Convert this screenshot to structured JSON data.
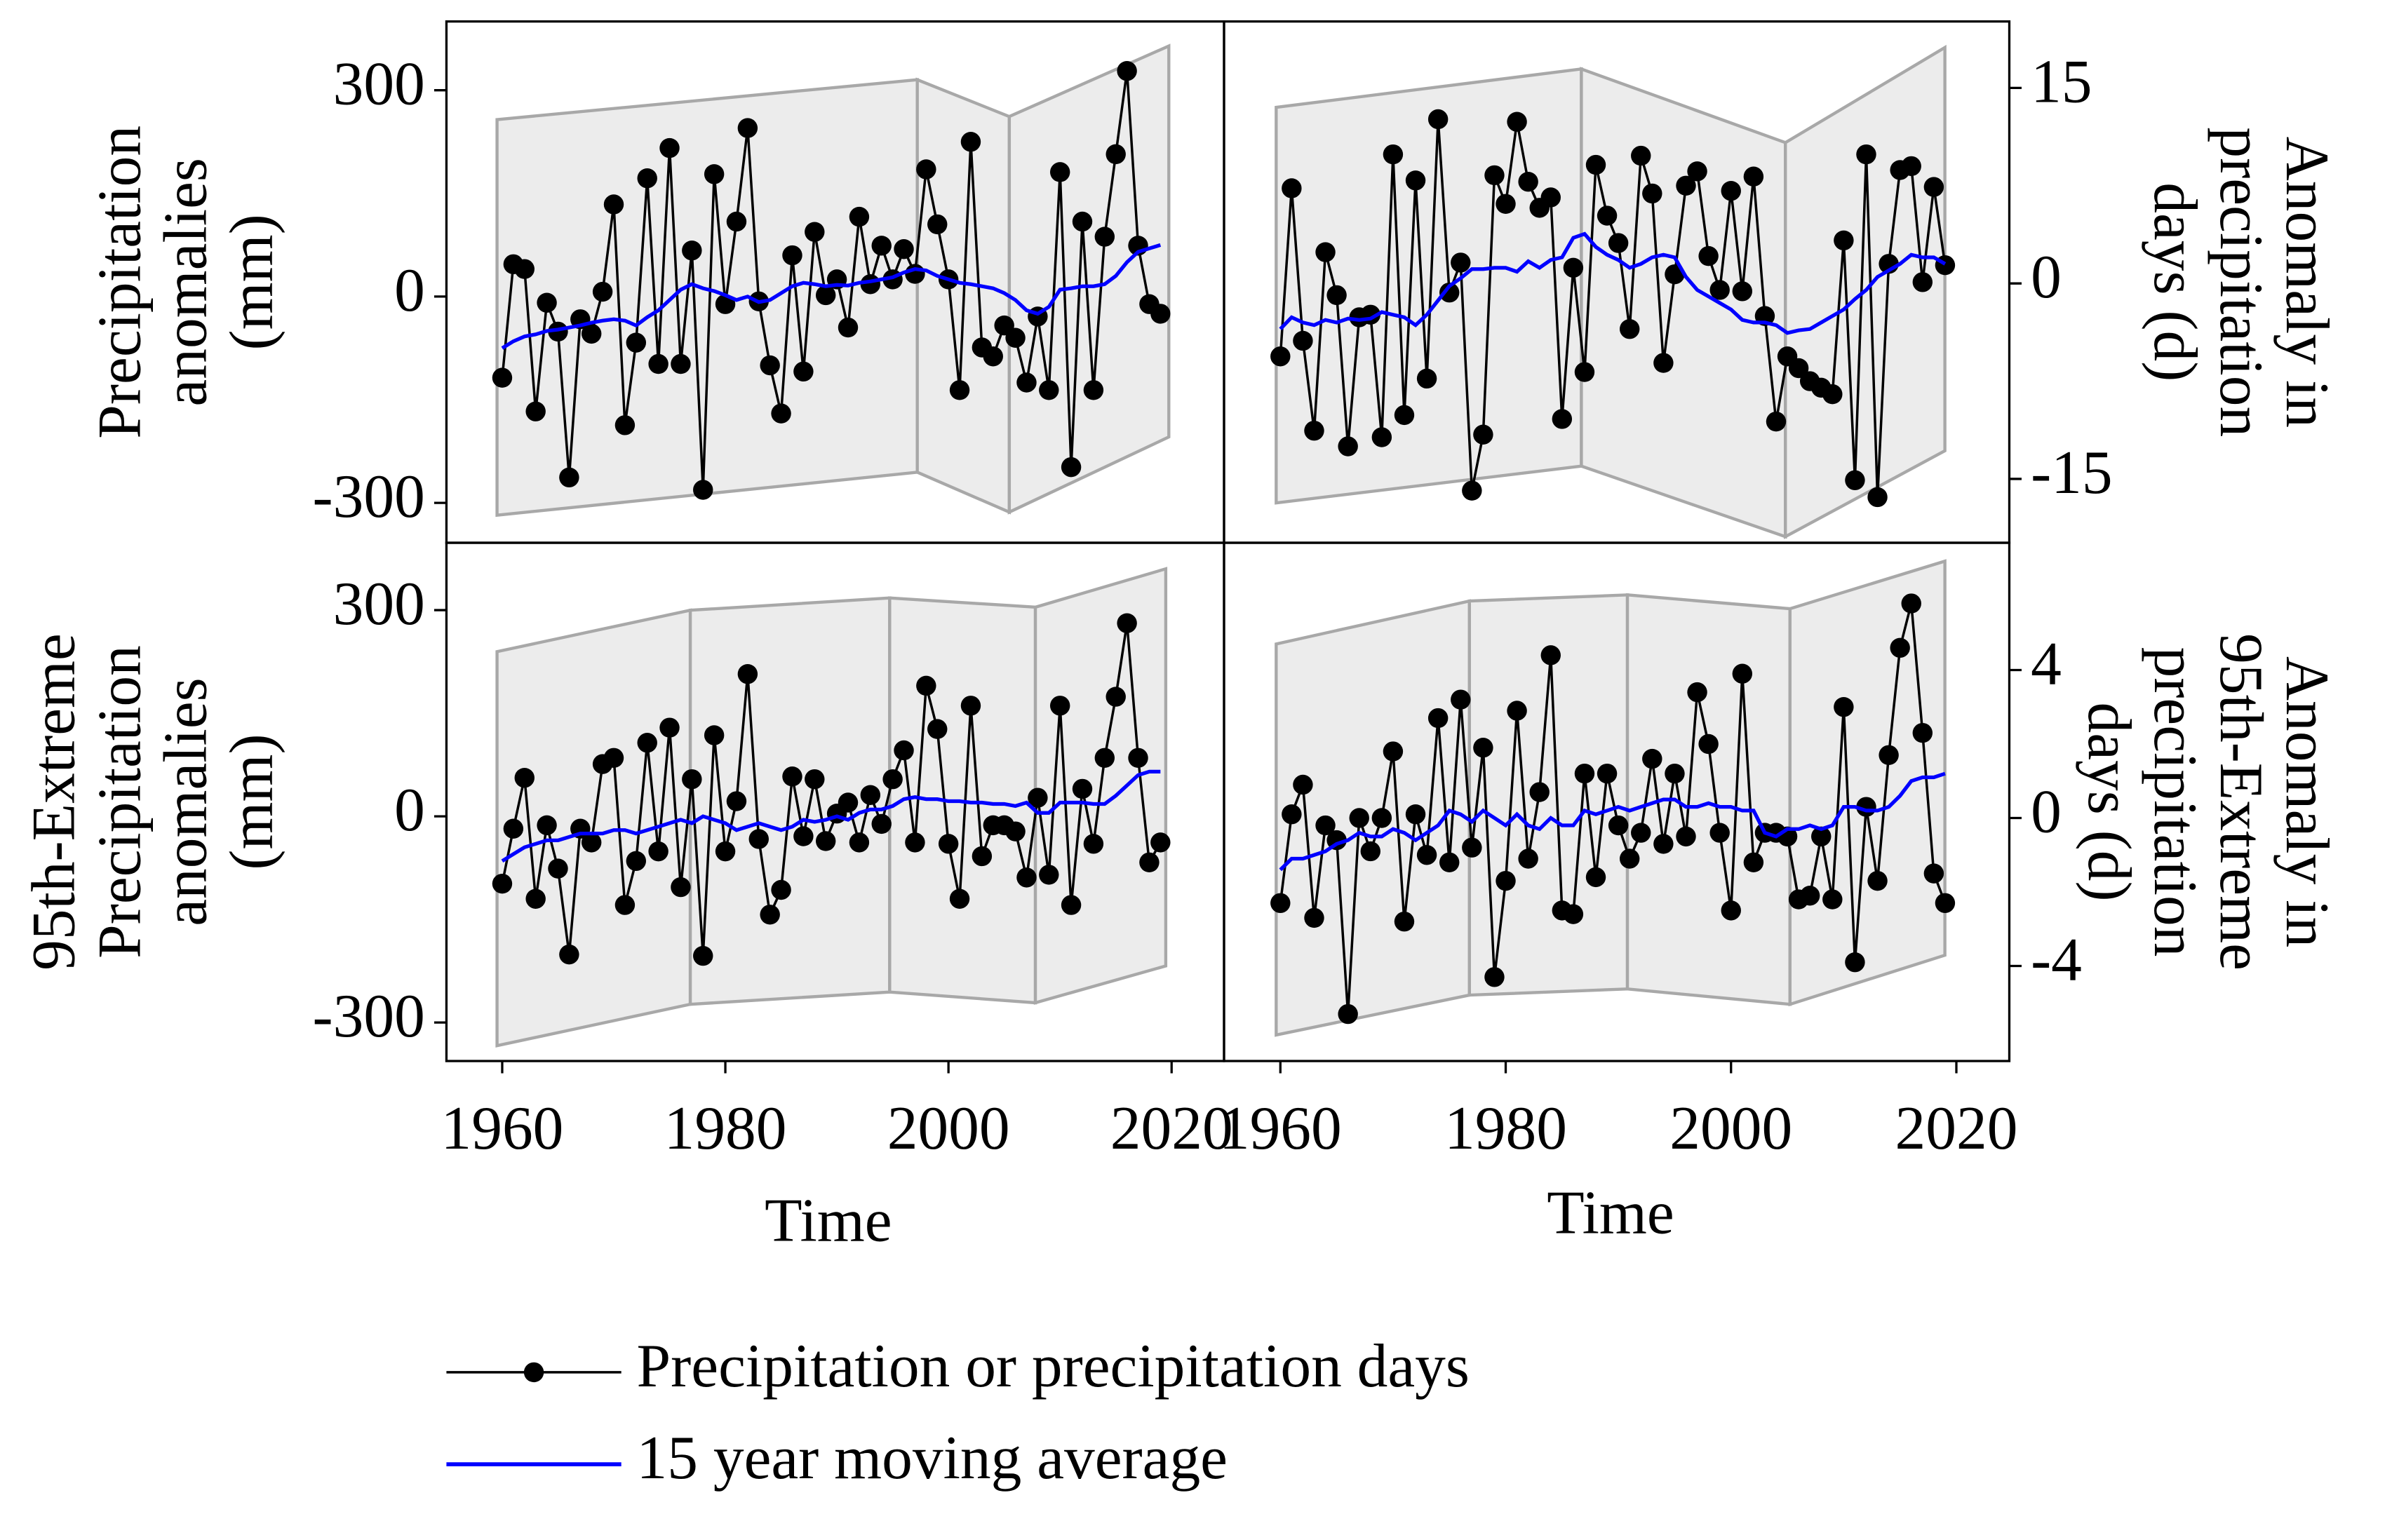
{
  "chart_data": [
    {
      "type": "line",
      "yaxis_position": "left",
      "ylabel": [
        "Precipitation",
        "anomalies",
        "(mm)"
      ],
      "xlim": [
        1955,
        2024.7
      ],
      "ylim": [
        -358,
        400
      ],
      "yticks": [
        -300,
        0,
        300
      ],
      "x": [
        1960,
        1961,
        1962,
        1963,
        1964,
        1965,
        1966,
        1967,
        1968,
        1969,
        1970,
        1971,
        1972,
        1973,
        1974,
        1975,
        1976,
        1977,
        1978,
        1979,
        1980,
        1981,
        1982,
        1983,
        1984,
        1985,
        1986,
        1987,
        1988,
        1989,
        1990,
        1991,
        1992,
        1993,
        1994,
        1995,
        1996,
        1997,
        1998,
        1999,
        2000,
        2001,
        2002,
        2003,
        2004,
        2005,
        2006,
        2007,
        2008,
        2009,
        2010,
        2011,
        2012,
        2013,
        2014,
        2015,
        2016,
        2017,
        2018,
        2019
      ],
      "series": [
        {
          "name": "Precipitation or precipitation days",
          "color": "#000000",
          "marker": true,
          "values": [
            -118,
            47,
            40,
            -167,
            -9,
            -51,
            -263,
            -33,
            -54,
            7,
            134,
            -187,
            -67,
            172,
            -98,
            216,
            -98,
            67,
            -281,
            178,
            -11,
            109,
            245,
            -7,
            -100,
            -170,
            60,
            -109,
            94,
            2,
            25,
            -45,
            116,
            18,
            74,
            25,
            69,
            33,
            185,
            105,
            25,
            -136,
            225,
            -74,
            -87,
            -42,
            -60,
            -125,
            -29,
            -136,
            181,
            -248,
            109,
            -136,
            87,
            207,
            328,
            74,
            -11,
            -25
          ]
        },
        {
          "name": "15 year moving average",
          "color": "#0000ff",
          "marker": false,
          "values": [
            -75,
            -65,
            -58,
            -55,
            -50,
            -48,
            -45,
            -42,
            -38,
            -35,
            -33,
            -35,
            -42,
            -30,
            -20,
            -5,
            10,
            18,
            12,
            8,
            2,
            -5,
            0,
            -8,
            -5,
            5,
            15,
            20,
            18,
            15,
            17,
            16,
            20,
            22,
            25,
            28,
            35,
            40,
            38,
            30,
            25,
            20,
            18,
            15,
            12,
            5,
            -5,
            -20,
            -25,
            -15,
            10,
            12,
            15,
            15,
            18,
            30,
            50,
            65,
            70,
            75
          ]
        }
      ]
    },
    {
      "type": "line",
      "yaxis_position": "right",
      "ylabel": [
        "Anomaly in",
        "precipitation",
        "days (d)"
      ],
      "xlim": [
        1955,
        2024.7
      ],
      "ylim": [
        -19.9,
        20.1
      ],
      "yticks": [
        -15,
        0,
        15
      ],
      "x": [
        1960,
        1961,
        1962,
        1963,
        1964,
        1965,
        1966,
        1967,
        1968,
        1969,
        1970,
        1971,
        1972,
        1973,
        1974,
        1975,
        1976,
        1977,
        1978,
        1979,
        1980,
        1981,
        1982,
        1983,
        1984,
        1985,
        1986,
        1987,
        1988,
        1989,
        1990,
        1991,
        1992,
        1993,
        1994,
        1995,
        1996,
        1997,
        1998,
        1999,
        2000,
        2001,
        2002,
        2003,
        2004,
        2005,
        2006,
        2007,
        2008,
        2009,
        2010,
        2011,
        2012,
        2013,
        2014,
        2015,
        2016,
        2017,
        2018,
        2019
      ],
      "series": [
        {
          "color": "#000000",
          "marker": true,
          "values": [
            -5.6,
            7.3,
            -4.4,
            -11.3,
            2.4,
            -0.9,
            -12.5,
            -2.6,
            -2.4,
            -11.8,
            9.9,
            -10.1,
            7.9,
            -7.3,
            12.6,
            -0.7,
            1.6,
            -15.9,
            -11.6,
            8.3,
            6.1,
            12.4,
            7.8,
            5.8,
            6.6,
            -10.4,
            1.2,
            -6.8,
            9.1,
            5.2,
            3.1,
            -3.5,
            9.8,
            6.9,
            -6.1,
            0.7,
            7.5,
            8.6,
            2.1,
            -0.5,
            7.1,
            -0.6,
            8.2,
            -2.5,
            -10.6,
            -5.6,
            -6.5,
            -7.5,
            -8.0,
            -8.5,
            3.3,
            -15.1,
            9.9,
            -16.4,
            1.5,
            8.7,
            9.0,
            0.1,
            7.4,
            1.4
          ]
        },
        {
          "color": "#0000ff",
          "marker": false,
          "values": [
            -3.5,
            -2.6,
            -3.0,
            -3.2,
            -2.8,
            -3.0,
            -2.7,
            -2.8,
            -2.7,
            -2.2,
            -2.4,
            -2.6,
            -3.2,
            -2.4,
            -1.3,
            -0.2,
            0.4,
            1.1,
            1.1,
            1.2,
            1.2,
            0.9,
            1.7,
            1.2,
            1.8,
            2.0,
            3.5,
            3.8,
            2.8,
            2.2,
            1.8,
            1.2,
            1.5,
            2.0,
            2.2,
            2.0,
            0.5,
            -0.5,
            -1.0,
            -1.5,
            -2.0,
            -2.8,
            -3.0,
            -3.0,
            -3.2,
            -3.8,
            -3.6,
            -3.5,
            -3.0,
            -2.5,
            -2.0,
            -1.2,
            -0.5,
            0.5,
            1.0,
            1.5,
            2.2,
            2.0,
            2.0,
            1.5
          ]
        }
      ]
    },
    {
      "type": "line",
      "yaxis_position": "left",
      "ylabel": [
        "95th-Extreme",
        "Precipitation",
        "anomalies",
        "(mm)"
      ],
      "xlabel": "Time",
      "xlim": [
        1955,
        2024.7
      ],
      "ylim": [
        -356,
        398
      ],
      "yticks": [
        -300,
        0,
        300
      ],
      "xticks": [
        1960,
        1980,
        2000,
        2020
      ],
      "x": [
        1960,
        1961,
        1962,
        1963,
        1964,
        1965,
        1966,
        1967,
        1968,
        1969,
        1970,
        1971,
        1972,
        1973,
        1974,
        1975,
        1976,
        1977,
        1978,
        1979,
        1980,
        1981,
        1982,
        1983,
        1984,
        1985,
        1986,
        1987,
        1988,
        1989,
        1990,
        1991,
        1992,
        1993,
        1994,
        1995,
        1996,
        1997,
        1998,
        1999,
        2000,
        2001,
        2002,
        2003,
        2004,
        2005,
        2006,
        2007,
        2008,
        2009,
        2010,
        2011,
        2012,
        2013,
        2014,
        2015,
        2016,
        2017,
        2018,
        2019
      ],
      "series": [
        {
          "color": "#000000",
          "marker": true,
          "values": [
            -98,
            -18,
            56,
            -120,
            -13,
            -76,
            -201,
            -18,
            -38,
            76,
            85,
            -129,
            -65,
            107,
            -51,
            129,
            -103,
            54,
            -203,
            118,
            -51,
            22,
            207,
            -33,
            -143,
            -107,
            58,
            -29,
            54,
            -36,
            4,
            20,
            -38,
            31,
            -11,
            54,
            96,
            -38,
            190,
            127,
            -40,
            -120,
            161,
            -58,
            -13,
            -13,
            -22,
            -89,
            27,
            -85,
            161,
            -129,
            40,
            -40,
            85,
            174,
            281,
            85,
            -67,
            -38
          ]
        },
        {
          "color": "#0000ff",
          "marker": false,
          "values": [
            -65,
            -55,
            -45,
            -40,
            -35,
            -35,
            -30,
            -25,
            -25,
            -25,
            -20,
            -20,
            -25,
            -20,
            -15,
            -10,
            -5,
            -10,
            0,
            -5,
            -10,
            -20,
            -15,
            -10,
            -15,
            -20,
            -15,
            -5,
            -8,
            -5,
            0,
            -5,
            5,
            10,
            10,
            15,
            25,
            28,
            25,
            25,
            22,
            22,
            20,
            20,
            18,
            18,
            15,
            20,
            5,
            5,
            20,
            20,
            20,
            18,
            18,
            30,
            45,
            60,
            65,
            65
          ]
        }
      ]
    },
    {
      "type": "line",
      "yaxis_position": "right",
      "ylabel": [
        "Anomaly in",
        "95th-Extreme",
        "precipitation",
        "days (d)"
      ],
      "xlabel": "Time",
      "xlim": [
        1955,
        2024.7
      ],
      "ylim": [
        -6.57,
        7.44
      ],
      "yticks": [
        -4,
        0,
        4
      ],
      "xticks": [
        1960,
        1980,
        2000,
        2020
      ],
      "x": [
        1960,
        1961,
        1962,
        1963,
        1964,
        1965,
        1966,
        1967,
        1968,
        1969,
        1970,
        1971,
        1972,
        1973,
        1974,
        1975,
        1976,
        1977,
        1978,
        1979,
        1980,
        1981,
        1982,
        1983,
        1984,
        1985,
        1986,
        1987,
        1988,
        1989,
        1990,
        1991,
        1992,
        1993,
        1994,
        1995,
        1996,
        1997,
        1998,
        1999,
        2000,
        2001,
        2002,
        2003,
        2004,
        2005,
        2006,
        2007,
        2008,
        2009,
        2010,
        2011,
        2012,
        2013,
        2014,
        2015,
        2016,
        2017,
        2018,
        2019
      ],
      "series": [
        {
          "color": "#000000",
          "marker": true,
          "values": [
            -2.3,
            0.1,
            0.9,
            -2.7,
            -0.2,
            -0.6,
            -5.3,
            0,
            -0.9,
            0,
            1.8,
            -2.8,
            0.1,
            -1.0,
            2.7,
            -1.2,
            3.2,
            -0.8,
            1.9,
            -4.3,
            -1.7,
            2.9,
            -1.1,
            0.7,
            4.4,
            -2.5,
            -2.6,
            1.2,
            -1.6,
            1.2,
            -0.2,
            -1.1,
            -0.4,
            1.6,
            -0.7,
            1.2,
            -0.5,
            3.4,
            2.0,
            -0.4,
            -2.5,
            3.9,
            -1.2,
            -0.4,
            -0.4,
            -0.5,
            -2.2,
            -2.1,
            -0.5,
            -2.2,
            3.0,
            -3.9,
            0.3,
            -1.7,
            1.7,
            4.6,
            5.8,
            2.3,
            -1.5,
            -2.3
          ]
        },
        {
          "color": "#0000ff",
          "marker": false,
          "values": [
            -1.4,
            -1.1,
            -1.1,
            -1.0,
            -0.9,
            -0.7,
            -0.6,
            -0.4,
            -0.5,
            -0.5,
            -0.3,
            -0.4,
            -0.6,
            -0.4,
            -0.2,
            0.2,
            0.1,
            -0.1,
            0.2,
            0,
            -0.2,
            0.1,
            -0.2,
            -0.3,
            0,
            -0.2,
            -0.2,
            0.2,
            0.1,
            0.2,
            0.3,
            0.2,
            0.3,
            0.4,
            0.5,
            0.5,
            0.3,
            0.3,
            0.4,
            0.3,
            0.3,
            0.2,
            0.2,
            -0.4,
            -0.5,
            -0.3,
            -0.3,
            -0.2,
            -0.3,
            -0.2,
            0.3,
            0.3,
            0.2,
            0.2,
            0.3,
            0.6,
            1.0,
            1.1,
            1.1,
            1.2
          ]
        }
      ]
    }
  ]
}
